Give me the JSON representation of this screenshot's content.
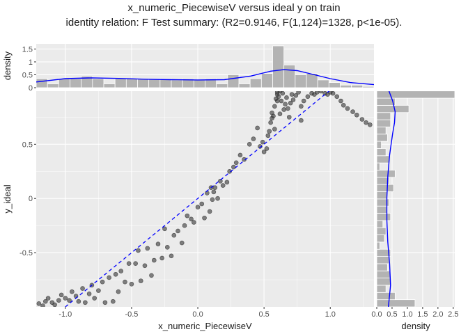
{
  "title": "x_numeric_PiecewiseV versus ideal y on train",
  "subtitle": "identity relation: F Test summary: (R2=0.9146, F(1,124)=1328, p<1e-05).",
  "colors": {
    "panel": "#ebebeb",
    "grid": "#ffffff",
    "points": "#333333",
    "fit_line": "#0000ff",
    "bars": "#b3b3b3"
  },
  "chart_data": [
    {
      "type": "scatter",
      "role": "main",
      "xlabel": "x_numeric_PiecewiseV",
      "ylabel": "y_ideal",
      "xlim": [
        -1.22,
        1.33
      ],
      "ylim": [
        -1.0,
        0.99
      ],
      "xticks": [
        -1.0,
        -0.5,
        0.0,
        0.5,
        1.0
      ],
      "xtick_labels": [
        "-1.0",
        "-0.5",
        "0.0",
        "0.5",
        "1.0"
      ],
      "yticks": [
        -0.5,
        0.0,
        0.5
      ],
      "ytick_labels": [
        "-0.5",
        "0",
        "0.5"
      ],
      "grid": true,
      "reference_line": {
        "style": "dashed",
        "color": "#0000ff",
        "x": [
          -1.0,
          1.0
        ],
        "y": [
          -1.0,
          1.0
        ]
      },
      "points": [
        [
          -1.2,
          -0.97
        ],
        [
          -1.17,
          -0.99
        ],
        [
          -1.15,
          -0.95
        ],
        [
          -1.13,
          -0.92
        ],
        [
          -1.1,
          -0.96
        ],
        [
          -1.08,
          -0.98
        ],
        [
          -1.05,
          -0.94
        ],
        [
          -1.03,
          -0.89
        ],
        [
          -1.0,
          -0.92
        ],
        [
          -0.97,
          -0.94
        ],
        [
          -0.95,
          -0.86
        ],
        [
          -0.92,
          -0.9
        ],
        [
          -0.9,
          -0.95
        ],
        [
          -0.87,
          -0.83
        ],
        [
          -0.85,
          -0.96
        ],
        [
          -0.82,
          -0.88
        ],
        [
          -0.8,
          -0.8
        ],
        [
          -0.78,
          -0.92
        ],
        [
          -0.75,
          -0.85
        ],
        [
          -0.72,
          -0.77
        ],
        [
          -0.7,
          -0.96
        ],
        [
          -0.67,
          -0.73
        ],
        [
          -0.64,
          -0.95
        ],
        [
          -0.62,
          -0.7
        ],
        [
          -0.6,
          -0.86
        ],
        [
          -0.58,
          -0.67
        ],
        [
          -0.55,
          -0.77
        ],
        [
          -0.52,
          -0.6
        ],
        [
          -0.5,
          -0.79
        ],
        [
          -0.47,
          -0.6
        ],
        [
          -0.45,
          -0.48
        ],
        [
          -0.43,
          -0.76
        ],
        [
          -0.4,
          -0.62
        ],
        [
          -0.38,
          -0.46
        ],
        [
          -0.35,
          -0.71
        ],
        [
          -0.33,
          -0.57
        ],
        [
          -0.3,
          -0.42
        ],
        [
          -0.27,
          -0.55
        ],
        [
          -0.25,
          -0.28
        ],
        [
          -0.23,
          -0.45
        ],
        [
          -0.2,
          -0.53
        ],
        [
          -0.18,
          -0.34
        ],
        [
          -0.15,
          -0.3
        ],
        [
          -0.12,
          -0.41
        ],
        [
          -0.1,
          -0.25
        ],
        [
          -0.08,
          -0.16
        ],
        [
          -0.05,
          -0.19
        ],
        [
          -0.03,
          -0.22
        ],
        [
          0.0,
          -0.08
        ],
        [
          0.03,
          -0.05
        ],
        [
          0.05,
          -0.18
        ],
        [
          0.07,
          0.05
        ],
        [
          0.09,
          -0.12
        ],
        [
          0.11,
          -0.01
        ],
        [
          0.13,
          0.1
        ],
        [
          0.1,
          0.1
        ],
        [
          0.12,
          0.06
        ],
        [
          0.15,
          0.0
        ],
        [
          0.17,
          0.16
        ],
        [
          0.19,
          0.12
        ],
        [
          0.22,
          0.15
        ],
        [
          0.24,
          0.25
        ],
        [
          0.27,
          0.29
        ],
        [
          0.29,
          0.33
        ],
        [
          0.32,
          0.4
        ],
        [
          0.35,
          0.36
        ],
        [
          0.39,
          0.5
        ],
        [
          0.42,
          0.55
        ],
        [
          0.45,
          0.65
        ],
        [
          0.47,
          0.48
        ],
        [
          0.49,
          0.52
        ],
        [
          0.5,
          0.43
        ],
        [
          0.52,
          0.46
        ],
        [
          0.53,
          0.58
        ],
        [
          0.54,
          0.62
        ],
        [
          0.55,
          0.7
        ],
        [
          0.56,
          0.74
        ],
        [
          0.56,
          0.79
        ],
        [
          0.57,
          0.76
        ],
        [
          0.58,
          0.85
        ],
        [
          0.58,
          0.64
        ],
        [
          0.59,
          0.92
        ],
        [
          0.6,
          0.96
        ],
        [
          0.6,
          0.98
        ],
        [
          0.61,
          0.94
        ],
        [
          0.62,
          0.99
        ],
        [
          0.63,
          0.9
        ],
        [
          0.64,
          0.97
        ],
        [
          0.65,
          0.82
        ],
        [
          0.66,
          0.87
        ],
        [
          0.67,
          0.93
        ],
        [
          0.68,
          0.83
        ],
        [
          0.69,
          0.75
        ],
        [
          0.7,
          0.88
        ],
        [
          0.71,
          0.96
        ],
        [
          0.72,
          0.91
        ],
        [
          0.74,
          0.95
        ],
        [
          0.76,
          0.98
        ],
        [
          0.78,
          0.85
        ],
        [
          0.8,
          0.9
        ],
        [
          0.83,
          0.94
        ],
        [
          0.86,
          0.97
        ],
        [
          0.88,
          0.96
        ],
        [
          0.9,
          0.98
        ],
        [
          0.93,
          0.99
        ],
        [
          0.96,
          0.97
        ],
        [
          0.98,
          0.96
        ],
        [
          1.0,
          0.98
        ],
        [
          1.02,
          0.97
        ],
        [
          1.05,
          0.94
        ],
        [
          1.08,
          0.9
        ],
        [
          1.1,
          0.86
        ],
        [
          1.13,
          0.83
        ],
        [
          1.17,
          0.8
        ],
        [
          1.2,
          0.77
        ],
        [
          1.24,
          0.73
        ],
        [
          1.27,
          0.7
        ],
        [
          1.3,
          0.68
        ],
        [
          0.78,
          0.72
        ],
        [
          0.62,
          0.78
        ],
        [
          0.6,
          0.9
        ]
      ]
    },
    {
      "type": "bar",
      "role": "top-marginal-histogram",
      "ylabel": "density",
      "ylim": [
        0,
        1.7
      ],
      "yticks": [
        0,
        0.5,
        1,
        1.5
      ],
      "ytick_labels": [
        "0",
        "0.5",
        "1",
        "1.5"
      ],
      "bin_edges_x": [
        -1.22,
        -1.135,
        -1.05,
        -0.965,
        -0.88,
        -0.795,
        -0.71,
        -0.625,
        -0.54,
        -0.455,
        -0.37,
        -0.285,
        -0.2,
        -0.115,
        -0.03,
        0.055,
        0.14,
        0.225,
        0.31,
        0.395,
        0.48,
        0.565,
        0.65,
        0.735,
        0.82,
        0.905,
        0.99,
        1.075,
        1.16,
        1.245,
        1.33
      ],
      "values": [
        0.35,
        0.15,
        0.35,
        0.35,
        0.45,
        0.35,
        0.15,
        0.35,
        0.35,
        0.35,
        0.35,
        0.35,
        0.3,
        0.35,
        0.3,
        0.35,
        0.15,
        0.5,
        0.15,
        0.35,
        0.55,
        1.62,
        0.88,
        0.5,
        0.55,
        0.3,
        0.2,
        0.1,
        0.1,
        0.05
      ],
      "density_curve": {
        "x": [
          -1.22,
          -1.0,
          -0.8,
          -0.6,
          -0.4,
          -0.2,
          0.0,
          0.2,
          0.4,
          0.55,
          0.65,
          0.75,
          0.85,
          1.0,
          1.15,
          1.33
        ],
        "y": [
          0.22,
          0.35,
          0.38,
          0.36,
          0.33,
          0.31,
          0.3,
          0.31,
          0.45,
          0.64,
          0.7,
          0.66,
          0.54,
          0.35,
          0.2,
          0.12
        ]
      }
    },
    {
      "type": "bar",
      "role": "right-marginal-histogram",
      "orientation": "horizontal",
      "xlabel": "density",
      "xlim": [
        0,
        2.55
      ],
      "xticks": [
        0,
        0.5,
        1.0,
        1.5,
        2.0,
        2.5
      ],
      "xtick_labels": [
        "0.0",
        "0.5",
        "1.0",
        "1.5",
        "2.0",
        "2.5"
      ],
      "bin_edges_y": [
        -1.0,
        -0.9336,
        -0.8672,
        -0.8008,
        -0.7344,
        -0.668,
        -0.6016,
        -0.5352,
        -0.4688,
        -0.4024,
        -0.336,
        -0.2696,
        -0.2032,
        -0.1368,
        -0.0704,
        -0.004,
        0.0624,
        0.1288,
        0.1952,
        0.2616,
        0.328,
        0.3944,
        0.4608,
        0.5272,
        0.5936,
        0.66,
        0.7264,
        0.7928,
        0.8592,
        0.9256,
        0.992
      ],
      "values": [
        1.25,
        0.6,
        0.3,
        0.45,
        0.45,
        0.35,
        0.4,
        0.45,
        0.1,
        0.25,
        0.3,
        0.2,
        0.45,
        0.35,
        0.4,
        0.35,
        0.55,
        0.4,
        0.6,
        0.1,
        0.4,
        0.3,
        0.15,
        0.35,
        0.3,
        0.45,
        0.45,
        1.05,
        0.6,
        2.55
      ],
      "density_curve": {
        "y": [
          -1.0,
          -0.8,
          -0.6,
          -0.4,
          -0.2,
          0.0,
          0.2,
          0.4,
          0.6,
          0.7,
          0.8,
          0.9,
          0.99
        ],
        "x": [
          0.38,
          0.45,
          0.42,
          0.36,
          0.33,
          0.33,
          0.36,
          0.42,
          0.52,
          0.58,
          0.6,
          0.52,
          0.4
        ]
      }
    }
  ]
}
